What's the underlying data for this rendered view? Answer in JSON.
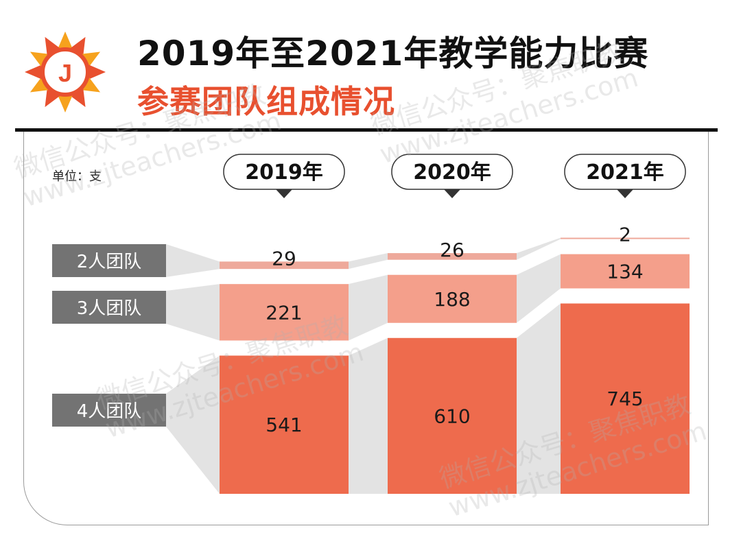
{
  "title": "2019年至2021年教学能力比赛",
  "subtitle": "参赛团队组成情况",
  "unit_label": "单位：支",
  "logo_letter": "J",
  "watermark_lines": [
    "微信公众号：聚焦职教",
    "www.zjteachers.com"
  ],
  "colors": {
    "title": "#111111",
    "subtitle": "#e8502f",
    "two_person": "#eea99b",
    "three_person": "#f49f8b",
    "four_person": "#ee6b4d",
    "flow": "#e3e3e3",
    "row_label_bg": "#737373"
  },
  "chart_data": {
    "type": "bar",
    "stacked": true,
    "unit": "支",
    "categories": [
      "2019年",
      "2020年",
      "2021年"
    ],
    "series": [
      {
        "name": "2人团队",
        "values": [
          29,
          26,
          2
        ]
      },
      {
        "name": "3人团队",
        "values": [
          221,
          188,
          134
        ]
      },
      {
        "name": "4人团队",
        "values": [
          541,
          610,
          745
        ]
      }
    ]
  }
}
